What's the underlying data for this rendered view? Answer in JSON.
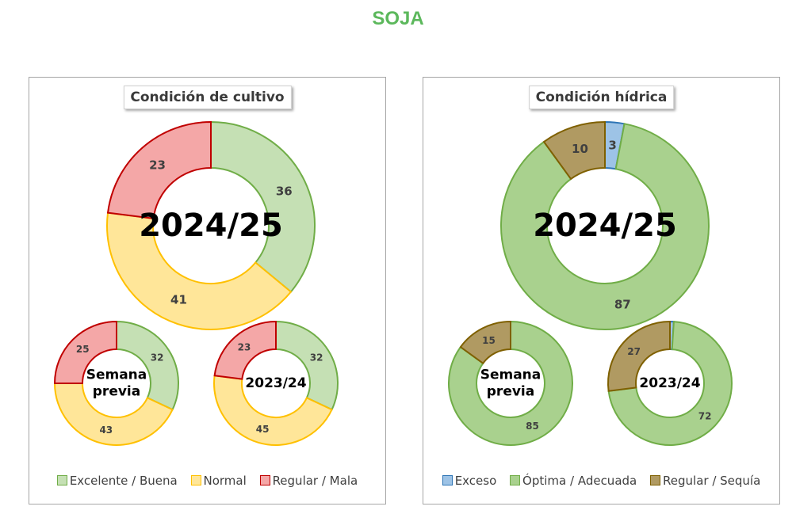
{
  "title": "SOJA",
  "colors": {
    "title": "#5cb85c",
    "excelente_buena": {
      "fill": "#c5e0b4",
      "stroke": "#70ad47"
    },
    "normal": {
      "fill": "#ffe699",
      "stroke": "#ffc000"
    },
    "regular_mala": {
      "fill": "#f4a7a7",
      "stroke": "#c00000"
    },
    "exceso": {
      "fill": "#9dc3e6",
      "stroke": "#2e75b6"
    },
    "optima_adecuada": {
      "fill": "#a9d18e",
      "stroke": "#70ad47"
    },
    "regular_sequia": {
      "fill": "#b09a62",
      "stroke": "#7f6000"
    }
  },
  "chart_data": [
    {
      "type": "pie",
      "title": "Condición de cultivo",
      "legend": [
        "Excelente / Buena",
        "Normal",
        "Regular / Mala"
      ],
      "legend_position": "bottom",
      "rings": [
        {
          "center_label": [
            "2024/25"
          ],
          "values": [
            36,
            41,
            23
          ]
        },
        {
          "center_label": [
            "Semana",
            "previa"
          ],
          "values": [
            32,
            43,
            25
          ]
        },
        {
          "center_label": [
            "2023/24"
          ],
          "values": [
            32,
            45,
            23
          ]
        }
      ]
    },
    {
      "type": "pie",
      "title": "Condición hídrica",
      "legend": [
        "Exceso",
        "Óptima / Adecuada",
        "Regular / Sequía"
      ],
      "legend_position": "bottom",
      "rings": [
        {
          "center_label": [
            "2024/25"
          ],
          "values": [
            3,
            87,
            10
          ]
        },
        {
          "center_label": [
            "Semana",
            "previa"
          ],
          "values": [
            0,
            85,
            15
          ]
        },
        {
          "center_label": [
            "2023/24"
          ],
          "values": [
            1,
            72,
            27
          ]
        }
      ]
    }
  ]
}
